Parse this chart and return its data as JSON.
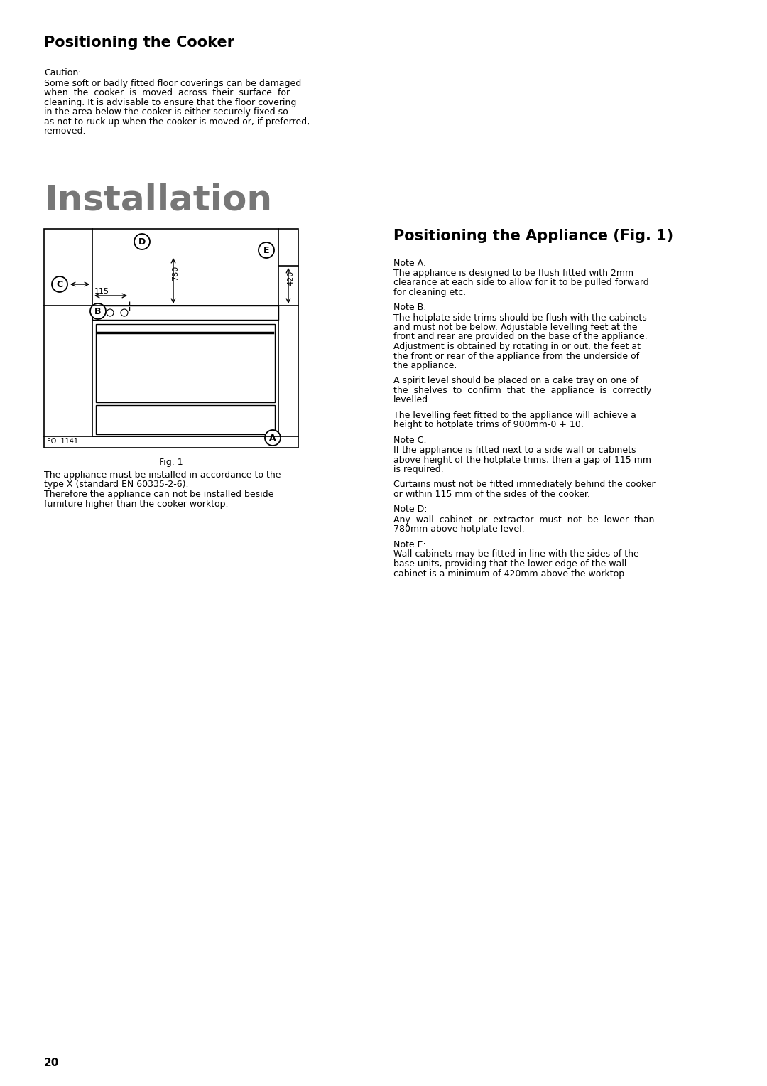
{
  "bg_color": "#ffffff",
  "title1": "Positioning the Cooker",
  "caution_label": "Caution:",
  "caution_lines": [
    "Some soft or badly fitted floor coverings can be damaged",
    "when  the  cooker  is  moved  across  their  surface  for",
    "cleaning. It is advisable to ensure that the floor covering",
    "in the area below the cooker is either securely fixed so",
    "as not to ruck up when the cooker is moved or, if preferred,",
    "removed."
  ],
  "install_title": "Installation",
  "title2": "Positioning the Appliance (Fig. 1)",
  "note_a_label": "Note A:",
  "note_a_lines": [
    "The appliance is designed to be flush fitted with 2mm",
    "clearance at each side to allow for it to be pulled forward",
    "for cleaning etc."
  ],
  "note_b_label": "Note B:",
  "note_b_lines": [
    "The hotplate side trims should be flush with the cabinets",
    "and must not be below. Adjustable levelling feet at the",
    "front and rear are provided on the base of the appliance.",
    "Adjustment is obtained by rotating in or out, the feet at",
    "the front or rear of the appliance from the underside of",
    "the appliance."
  ],
  "note_b2_lines": [
    "A spirit level should be placed on a cake tray on one of",
    "the  shelves  to  confirm  that  the  appliance  is  correctly",
    "levelled."
  ],
  "note_b3_lines": [
    "The levelling feet fitted to the appliance will achieve a",
    "height to hotplate trims of 900mm-0 + 10."
  ],
  "note_c_label": "Note C:",
  "note_c_lines": [
    "If the appliance is fitted next to a side wall or cabinets",
    "above height of the hotplate trims, then a gap of 115 mm",
    "is required."
  ],
  "note_c2_lines": [
    "Curtains must not be fitted immediately behind the cooker",
    "or within 115 mm of the sides of the cooker."
  ],
  "note_d_label": "Note D:",
  "note_d_lines": [
    "Any  wall  cabinet  or  extractor  must  not  be  lower  than",
    "780mm above hotplate level."
  ],
  "note_e_label": "Note E:",
  "note_e_lines": [
    "Wall cabinets may be fitted in line with the sides of the",
    "base units, providing that the lower edge of the wall",
    "cabinet is a minimum of 420mm above the worktop."
  ],
  "install_lines": [
    "The appliance must be installed in accordance to the",
    "type X (standard EN 60335-2-6).",
    "Therefore the appliance can not be installed beside",
    "furniture higher than the cooker worktop."
  ],
  "fig_label": "Fig. 1",
  "fo_label": "FO  1141",
  "page_num": "20",
  "install_color": "#777777"
}
